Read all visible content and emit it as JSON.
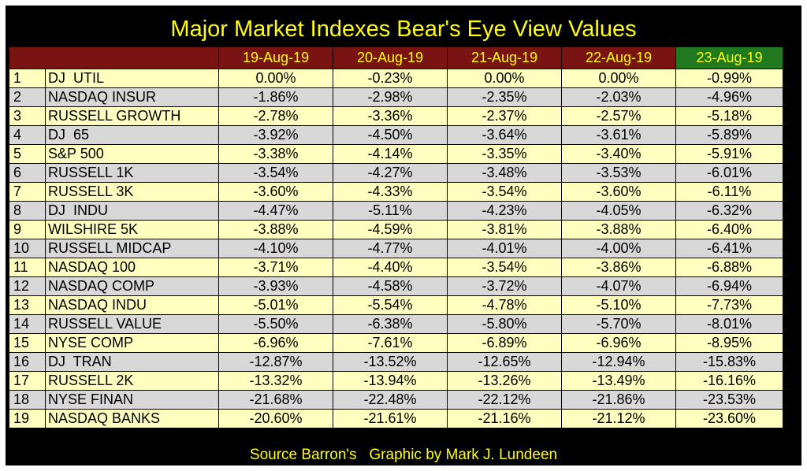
{
  "title": "Major Market Indexes Bear's Eye View Values",
  "footer": "Source Barron's   Graphic by Mark J. Lundeen",
  "colors": {
    "background": "#000000",
    "title_text": "#ffff00",
    "header_bg": "#7a1412",
    "header_last_bg": "#1f7a1f",
    "row_odd": "#ffffc0",
    "row_even": "#d8d8d8"
  },
  "chart_data": {
    "type": "table",
    "title": "Major Market Indexes Bear's Eye View Values",
    "columns": [
      "19-Aug-19",
      "20-Aug-19",
      "21-Aug-19",
      "22-Aug-19",
      "23-Aug-19"
    ],
    "rows": [
      {
        "rank": "1",
        "name": "DJ  UTIL",
        "values": [
          "0.00%",
          "-0.23%",
          "0.00%",
          "0.00%",
          "-0.99%"
        ]
      },
      {
        "rank": "2",
        "name": "NASDAQ INSUR",
        "values": [
          "-1.86%",
          "-2.98%",
          "-2.35%",
          "-2.03%",
          "-4.96%"
        ]
      },
      {
        "rank": "3",
        "name": "RUSSELL GROWTH",
        "values": [
          "-2.78%",
          "-3.36%",
          "-2.37%",
          "-2.57%",
          "-5.18%"
        ]
      },
      {
        "rank": "4",
        "name": "DJ  65",
        "values": [
          "-3.92%",
          "-4.50%",
          "-3.64%",
          "-3.61%",
          "-5.89%"
        ]
      },
      {
        "rank": "5",
        "name": "S&P 500",
        "values": [
          "-3.38%",
          "-4.14%",
          "-3.35%",
          "-3.40%",
          "-5.91%"
        ]
      },
      {
        "rank": "6",
        "name": "RUSSELL 1K",
        "values": [
          "-3.54%",
          "-4.27%",
          "-3.48%",
          "-3.53%",
          "-6.01%"
        ]
      },
      {
        "rank": "7",
        "name": "RUSSELL 3K",
        "values": [
          "-3.60%",
          "-4.33%",
          "-3.54%",
          "-3.60%",
          "-6.11%"
        ]
      },
      {
        "rank": "8",
        "name": "DJ  INDU",
        "values": [
          "-4.47%",
          "-5.11%",
          "-4.23%",
          "-4.05%",
          "-6.32%"
        ]
      },
      {
        "rank": "9",
        "name": "WILSHIRE 5K",
        "values": [
          "-3.88%",
          "-4.59%",
          "-3.81%",
          "-3.88%",
          "-6.40%"
        ]
      },
      {
        "rank": "10",
        "name": "RUSSELL MIDCAP",
        "values": [
          "-4.10%",
          "-4.77%",
          "-4.01%",
          "-4.00%",
          "-6.41%"
        ]
      },
      {
        "rank": "11",
        "name": "NASDAQ 100",
        "values": [
          "-3.71%",
          "-4.40%",
          "-3.54%",
          "-3.86%",
          "-6.88%"
        ]
      },
      {
        "rank": "12",
        "name": "NASDAQ COMP",
        "values": [
          "-3.93%",
          "-4.58%",
          "-3.72%",
          "-4.07%",
          "-6.94%"
        ]
      },
      {
        "rank": "13",
        "name": "NASDAQ INDU",
        "values": [
          "-5.01%",
          "-5.54%",
          "-4.78%",
          "-5.10%",
          "-7.73%"
        ]
      },
      {
        "rank": "14",
        "name": "RUSSELL VALUE",
        "values": [
          "-5.50%",
          "-6.38%",
          "-5.80%",
          "-5.70%",
          "-8.01%"
        ]
      },
      {
        "rank": "15",
        "name": "NYSE COMP",
        "values": [
          "-6.96%",
          "-7.61%",
          "-6.89%",
          "-6.96%",
          "-8.95%"
        ]
      },
      {
        "rank": "16",
        "name": "DJ  TRAN",
        "values": [
          "-12.87%",
          "-13.52%",
          "-12.65%",
          "-12.94%",
          "-15.83%"
        ]
      },
      {
        "rank": "17",
        "name": "RUSSELL 2K",
        "values": [
          "-13.32%",
          "-13.94%",
          "-13.26%",
          "-13.49%",
          "-16.16%"
        ]
      },
      {
        "rank": "18",
        "name": "NYSE FINAN",
        "values": [
          "-21.68%",
          "-22.48%",
          "-22.12%",
          "-21.86%",
          "-23.53%"
        ]
      },
      {
        "rank": "19",
        "name": "NASDAQ BANKS",
        "values": [
          "-20.60%",
          "-21.61%",
          "-21.16%",
          "-21.12%",
          "-23.60%"
        ]
      }
    ]
  }
}
